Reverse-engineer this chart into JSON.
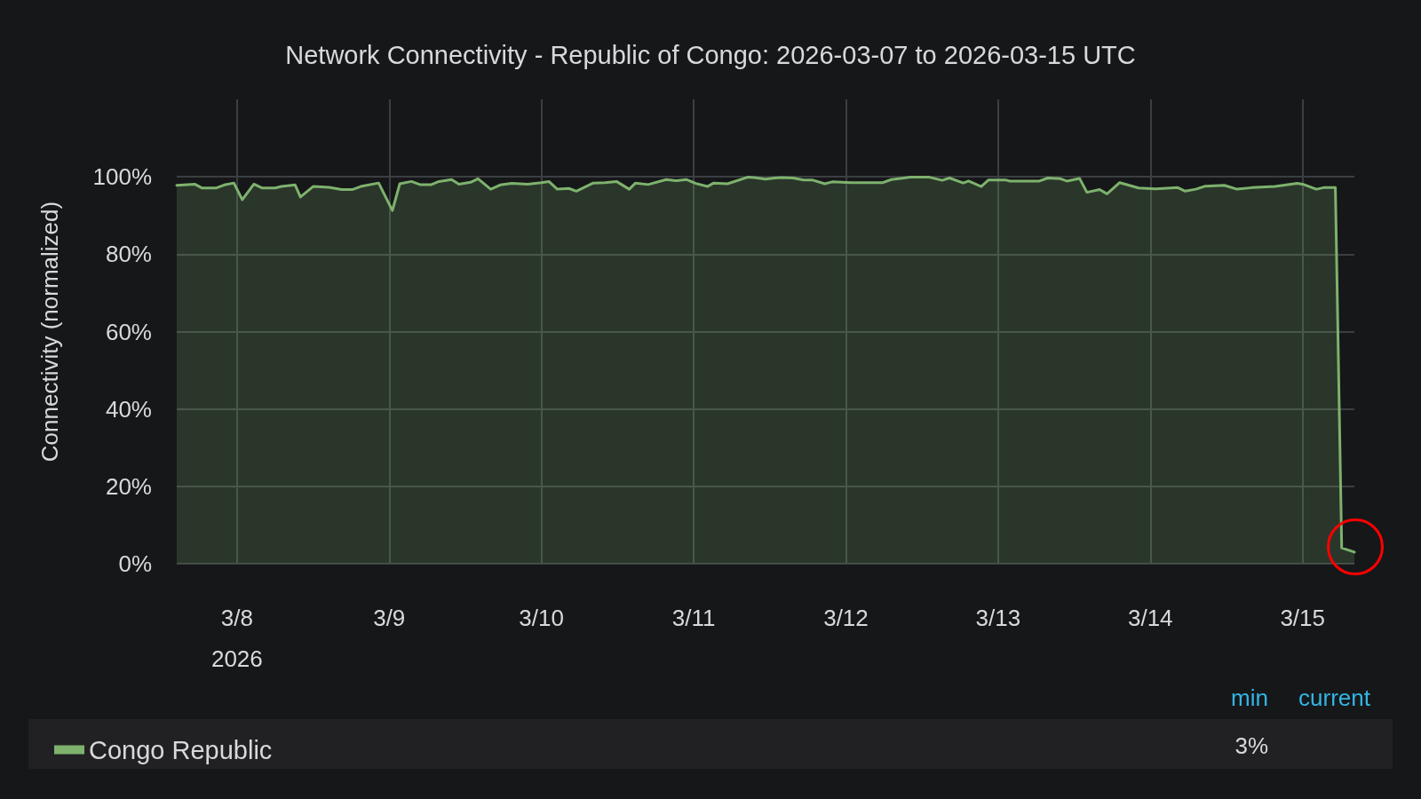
{
  "chart_data": {
    "type": "area",
    "title": "Network Connectivity - Republic of Congo: 2026-03-07 to 2026-03-15 UTC",
    "ylabel": "Connectivity (normalized)",
    "xlim": [
      "2026-03-07T14:30",
      "2026-03-15T08:10"
    ],
    "xticks": [
      {
        "value": "2026-03-08",
        "label": "3/8\n2026"
      },
      {
        "value": "2026-03-09",
        "label": "3/9"
      },
      {
        "value": "2026-03-10",
        "label": "3/10"
      },
      {
        "value": "2026-03-11",
        "label": "3/11"
      },
      {
        "value": "2026-03-12",
        "label": "3/12"
      },
      {
        "value": "2026-03-13",
        "label": "3/13"
      },
      {
        "value": "2026-03-14",
        "label": "3/14"
      },
      {
        "value": "2026-03-15",
        "label": "3/15"
      }
    ],
    "ylim": [
      0,
      120
    ],
    "yticks": [
      {
        "value": 0,
        "label": "0%"
      },
      {
        "value": 20,
        "label": "20%"
      },
      {
        "value": 40,
        "label": "40%"
      },
      {
        "value": 60,
        "label": "60%"
      },
      {
        "value": 80,
        "label": "80%"
      },
      {
        "value": 100,
        "label": "100%"
      }
    ],
    "grid": true,
    "legend": "bottom left",
    "marker": "none",
    "line_style": "solid",
    "annotations": [
      "min",
      "current",
      "3%"
    ],
    "series": [
      {
        "name": "Congo Republic",
        "color": "#7eb26d",
        "x": [
          "2026-03-07T14:30",
          "2026-03-07T17:20",
          "2026-03-07T18:30",
          "2026-03-07T20:40",
          "2026-03-07T22:00",
          "2026-03-07T23:30",
          "2026-03-08T00:50",
          "2026-03-08T02:40",
          "2026-03-08T04:00",
          "2026-03-08T06:00",
          "2026-03-08T07:00",
          "2026-03-08T09:10",
          "2026-03-08T10:00",
          "2026-03-08T12:00",
          "2026-03-08T14:30",
          "2026-03-08T16:30",
          "2026-03-08T18:10",
          "2026-03-08T19:30",
          "2026-03-08T22:20",
          "2026-03-09T00:30",
          "2026-03-09T01:40",
          "2026-03-09T03:30",
          "2026-03-09T04:50",
          "2026-03-09T06:40",
          "2026-03-09T07:50",
          "2026-03-09T09:50",
          "2026-03-09T11:00",
          "2026-03-09T12:50",
          "2026-03-09T14:00",
          "2026-03-09T16:00",
          "2026-03-09T17:30",
          "2026-03-09T19:20",
          "2026-03-09T21:50",
          "2026-03-10T00:00",
          "2026-03-10T01:10",
          "2026-03-10T02:30",
          "2026-03-10T04:20",
          "2026-03-10T05:30",
          "2026-03-10T08:10",
          "2026-03-10T10:00",
          "2026-03-10T11:50",
          "2026-03-10T13:50",
          "2026-03-10T14:50",
          "2026-03-10T16:50",
          "2026-03-10T19:40",
          "2026-03-10T21:10",
          "2026-03-10T22:50",
          "2026-03-11T00:20",
          "2026-03-11T02:10",
          "2026-03-11T03:10",
          "2026-03-11T05:20",
          "2026-03-11T08:30",
          "2026-03-11T09:30",
          "2026-03-11T11:20",
          "2026-03-11T12:50",
          "2026-03-11T13:50",
          "2026-03-11T15:40",
          "2026-03-11T17:20",
          "2026-03-11T18:40",
          "2026-03-11T20:40",
          "2026-03-11T21:50",
          "2026-03-12T00:50",
          "2026-03-12T05:50",
          "2026-03-12T07:10",
          "2026-03-12T10:10",
          "2026-03-12T13:10",
          "2026-03-12T15:10",
          "2026-03-12T16:20",
          "2026-03-12T18:30",
          "2026-03-12T19:20",
          "2026-03-12T21:20",
          "2026-03-12T22:30",
          "2026-03-13T01:10",
          "2026-03-13T01:50",
          "2026-03-13T06:30",
          "2026-03-13T07:50",
          "2026-03-13T09:50",
          "2026-03-13T10:50",
          "2026-03-13T12:50",
          "2026-03-13T14:00",
          "2026-03-13T16:00",
          "2026-03-13T17:10",
          "2026-03-13T19:10",
          "2026-03-13T22:10",
          "2026-03-14T00:50",
          "2026-03-14T04:20",
          "2026-03-14T05:30",
          "2026-03-14T07:10",
          "2026-03-14T08:40",
          "2026-03-14T11:40",
          "2026-03-14T13:40",
          "2026-03-14T16:00",
          "2026-03-14T19:40",
          "2026-03-14T23:10",
          "2026-03-15T00:00",
          "2026-03-15T02:10",
          "2026-03-15T03:20",
          "2026-03-15T05:10",
          "2026-03-15T06:10",
          "2026-03-15T08:10"
        ],
        "values": [
          97.8,
          98.1,
          97.1,
          97.1,
          97.9,
          98.4,
          94.1,
          98.1,
          97.1,
          97.1,
          97.5,
          97.9,
          94.8,
          97.5,
          97.3,
          96.7,
          96.7,
          97.5,
          98.4,
          91.3,
          98.2,
          98.8,
          98.0,
          98.0,
          98.8,
          99.3,
          98.1,
          98.6,
          99.5,
          96.8,
          97.9,
          98.3,
          98.1,
          98.5,
          98.8,
          96.8,
          97.0,
          96.3,
          98.4,
          98.5,
          98.8,
          96.8,
          98.4,
          98.0,
          99.3,
          99.0,
          99.3,
          98.3,
          97.5,
          98.4,
          98.2,
          99.9,
          99.8,
          99.4,
          99.7,
          99.8,
          99.7,
          99.2,
          99.2,
          98.2,
          98.7,
          98.5,
          98.5,
          99.3,
          99.9,
          99.9,
          99.1,
          99.7,
          98.4,
          98.9,
          97.5,
          99.2,
          99.2,
          98.9,
          98.9,
          99.7,
          99.5,
          98.9,
          99.6,
          96.0,
          96.7,
          95.6,
          98.5,
          97.1,
          96.9,
          97.2,
          96.3,
          96.8,
          97.6,
          97.8,
          96.8,
          97.2,
          97.5,
          98.3,
          98.1,
          96.8,
          97.2,
          97.2,
          4.1,
          3
        ]
      }
    ]
  }
}
